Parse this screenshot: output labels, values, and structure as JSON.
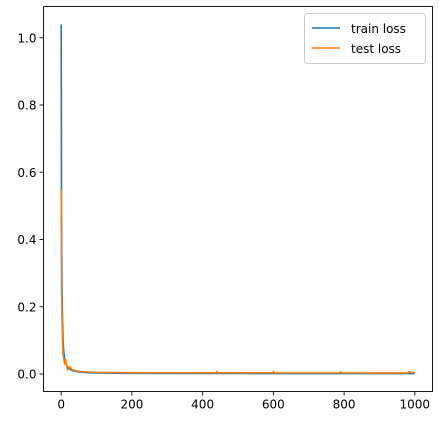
{
  "chart_data": {
    "type": "line",
    "title": "",
    "xlabel": "",
    "ylabel": "",
    "xlim": [
      -50,
      1050
    ],
    "ylim": [
      -0.052,
      1.093
    ],
    "grid": false,
    "legend_placement": "top-right",
    "x_ticks": [
      0,
      200,
      400,
      600,
      800,
      1000
    ],
    "x_tick_labels": [
      "0",
      "200",
      "400",
      "600",
      "800",
      "1000"
    ],
    "y_ticks": [
      0.0,
      0.2,
      0.4,
      0.6,
      0.8,
      1.0
    ],
    "y_tick_labels": [
      "0.0",
      "0.2",
      "0.4",
      "0.6",
      "0.8",
      "1.0"
    ],
    "series": [
      {
        "name": "train loss",
        "color": "#1f77b4",
        "x": [
          0,
          1,
          2,
          3,
          4,
          5,
          6,
          8,
          10,
          12,
          15,
          20,
          25,
          30,
          40,
          50,
          60,
          80,
          100,
          150,
          200,
          300,
          400,
          440,
          500,
          600,
          700,
          790,
          900,
          1000
        ],
        "y": [
          1.04,
          0.45,
          0.28,
          0.2,
          0.15,
          0.11,
          0.085,
          0.06,
          0.045,
          0.035,
          0.025,
          0.018,
          0.014,
          0.011,
          0.008,
          0.006,
          0.005,
          0.004,
          0.003,
          0.0025,
          0.002,
          0.0018,
          0.0016,
          0.0016,
          0.0015,
          0.0014,
          0.0013,
          0.0013,
          0.0012,
          0.0012
        ]
      },
      {
        "name": "test loss",
        "color": "#ff7f0e",
        "x": [
          0,
          1,
          2,
          3,
          4,
          5,
          6,
          8,
          10,
          12,
          15,
          18,
          20,
          25,
          30,
          40,
          50,
          60,
          80,
          100,
          150,
          200,
          300,
          400,
          438,
          440,
          443,
          500,
          598,
          600,
          603,
          700,
          788,
          790,
          793,
          900,
          980,
          983,
          1000
        ],
        "y": [
          0.55,
          0.25,
          0.18,
          0.12,
          0.09,
          0.065,
          0.05,
          0.04,
          0.03,
          0.045,
          0.025,
          0.012,
          0.022,
          0.02,
          0.013,
          0.01,
          0.008,
          0.007,
          0.006,
          0.005,
          0.0045,
          0.004,
          0.0038,
          0.0036,
          0.0036,
          0.0075,
          0.0036,
          0.0035,
          0.0035,
          0.0075,
          0.0035,
          0.0034,
          0.0034,
          0.007,
          0.0034,
          0.0033,
          0.0033,
          0.0065,
          0.0033
        ]
      }
    ]
  }
}
